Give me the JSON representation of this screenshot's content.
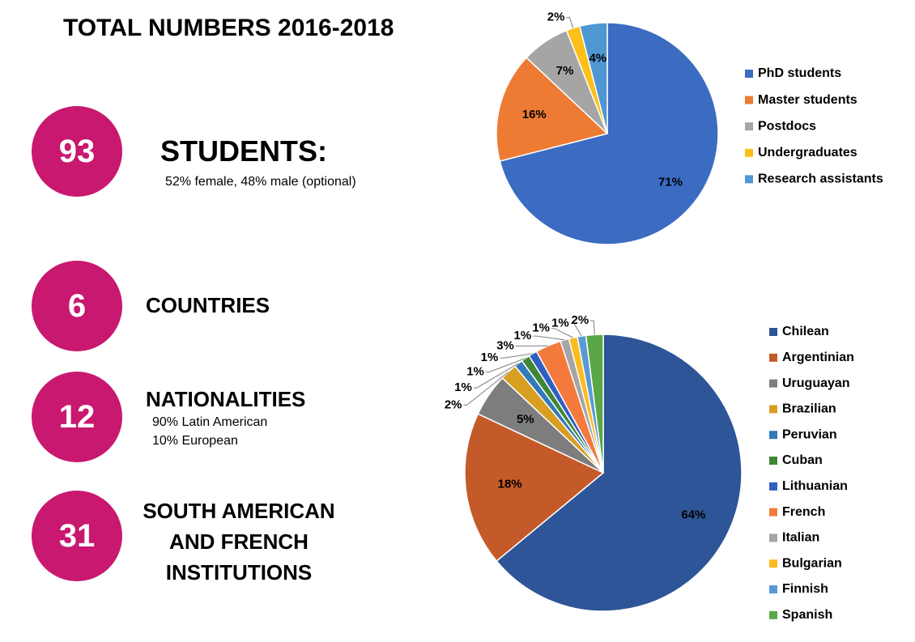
{
  "title": "TOTAL NUMBERS 2016-2018",
  "stats": [
    {
      "number": 93,
      "heading": "STUDENTS:",
      "notes": [
        "52% female, 48% male (optional)"
      ]
    },
    {
      "number": 6,
      "heading": "COUNTRIES"
    },
    {
      "number": 12,
      "heading": "NATIONALITIES",
      "notes": [
        "90% Latin American",
        "10% European"
      ]
    },
    {
      "number": 31,
      "heading": "SOUTH AMERICAN AND FRENCH INSTITUTIONS"
    }
  ],
  "chart_data": [
    {
      "type": "pie",
      "categories": [
        "PhD students",
        "Master students",
        "Postdocs",
        "Undergraduates",
        "Research assistants"
      ],
      "values": [
        71,
        16,
        7,
        2,
        4
      ],
      "value_labels": [
        "71%",
        "16%",
        "7%",
        "2%",
        "4%"
      ],
      "colors": [
        "#3b6cc2",
        "#ee7b33",
        "#a5a5a5",
        "#fdbf1a",
        "#4f97d3"
      ]
    },
    {
      "type": "pie",
      "categories": [
        "Chilean",
        "Argentinian",
        "Uruguayan",
        "Brazilian",
        "Peruvian",
        "Cuban",
        "Lithuanian",
        "French",
        "Italian",
        "Bulgarian",
        "Finnish",
        "Spanish"
      ],
      "values": [
        64,
        18,
        5,
        2,
        1,
        1,
        1,
        3,
        1,
        1,
        1,
        2
      ],
      "value_labels": [
        "64%",
        "18%",
        "5%",
        "2%",
        "1%",
        "1%",
        "1%",
        "3%",
        "1%",
        "1%",
        "1%",
        "2%"
      ],
      "colors": [
        "#2d5597",
        "#c45a29",
        "#7d7d7d",
        "#d79e22",
        "#3479b8",
        "#3f8737",
        "#2f5fc2",
        "#f37a3c",
        "#a5a5a5",
        "#fcbc20",
        "#5a9ad3",
        "#5ba748"
      ]
    }
  ]
}
